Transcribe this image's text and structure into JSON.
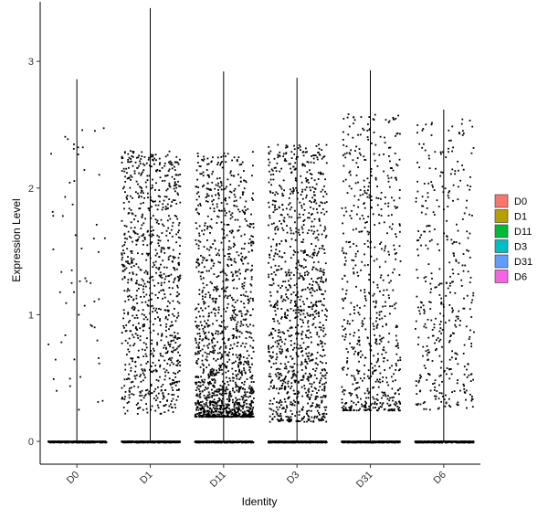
{
  "chart_data": {
    "type": "violin-jitter",
    "title": "",
    "xlabel": "Identity",
    "ylabel": "Expression Level",
    "ylim": [
      -0.18,
      3.47
    ],
    "yticks": [
      0,
      1,
      2,
      3
    ],
    "grid": false,
    "legend_position": "right",
    "categories": [
      "D0",
      "D1",
      "D11",
      "D3",
      "D31",
      "D6"
    ],
    "series": [
      {
        "name": "D0",
        "color": "#F8766D",
        "violin_max": 2.86,
        "expressing_cells": 60,
        "expressing_range": [
          0.25,
          2.55
        ],
        "zero_cells": 2000
      },
      {
        "name": "D1",
        "color": "#B79F00",
        "violin_max": 3.42,
        "expressing_cells": 900,
        "expressing_range": [
          0.22,
          2.3
        ],
        "zero_cells": 2000
      },
      {
        "name": "D11",
        "color": "#00BA38",
        "violin_max": 2.92,
        "expressing_cells": 1400,
        "expressing_range": [
          0.2,
          2.3
        ],
        "zero_cells": 2000
      },
      {
        "name": "D3",
        "color": "#00BFC4",
        "violin_max": 2.87,
        "expressing_cells": 1100,
        "expressing_range": [
          0.16,
          2.35
        ],
        "zero_cells": 2000
      },
      {
        "name": "D31",
        "color": "#619CFF",
        "violin_max": 2.93,
        "expressing_cells": 650,
        "expressing_range": [
          0.25,
          2.6
        ],
        "zero_cells": 2000
      },
      {
        "name": "D6",
        "color": "#F564E3",
        "violin_max": 2.62,
        "expressing_cells": 400,
        "expressing_range": [
          0.25,
          2.55
        ],
        "zero_cells": 2000
      }
    ]
  }
}
